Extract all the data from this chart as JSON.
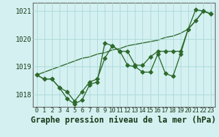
{
  "title": "Graphe pression niveau de la mer (hPa)",
  "hours": [
    0,
    1,
    2,
    3,
    4,
    5,
    6,
    7,
    8,
    9,
    10,
    11,
    12,
    13,
    14,
    15,
    16,
    17,
    18,
    19,
    20,
    21,
    22,
    23
  ],
  "series_zigzag": [
    1018.7,
    1018.55,
    1018.55,
    1018.25,
    1017.85,
    1017.65,
    1017.8,
    1018.35,
    1018.45,
    1019.85,
    1019.75,
    1019.55,
    1019.05,
    1019.0,
    1018.8,
    1018.8,
    1019.45,
    1018.75,
    1018.65,
    1019.45,
    1020.35,
    1021.05,
    1021.0,
    1020.9
  ],
  "series_smooth": [
    1018.7,
    1018.55,
    1018.55,
    1018.25,
    1018.1,
    1017.75,
    1018.1,
    1018.45,
    1018.55,
    1019.3,
    1019.75,
    1019.55,
    1019.55,
    1019.05,
    1019.05,
    1019.35,
    1019.55,
    1019.55,
    1019.55,
    1019.55,
    1020.35,
    1020.65,
    1021.0,
    1020.9
  ],
  "series_linear": [
    1018.7,
    1018.8,
    1018.9,
    1019.0,
    1019.1,
    1019.2,
    1019.3,
    1019.35,
    1019.45,
    1019.5,
    1019.6,
    1019.65,
    1019.75,
    1019.8,
    1019.85,
    1019.9,
    1019.95,
    1020.05,
    1020.1,
    1020.2,
    1020.35,
    1020.65,
    1021.0,
    1020.9
  ],
  "line_color": "#2d6a2d",
  "bg_color": "#d4f0f0",
  "grid_color": "#a8d8d8",
  "ylim_min": 1017.55,
  "ylim_max": 1021.3,
  "yticks": [
    1018,
    1019,
    1020,
    1021
  ],
  "ytick_labels": [
    "1018",
    "1019",
    "1020",
    "1021"
  ],
  "xtick_labels": [
    "0",
    "1",
    "2",
    "3",
    "4",
    "5",
    "6",
    "7",
    "8",
    "9",
    "10",
    "11",
    "12",
    "13",
    "14",
    "15",
    "16",
    "17",
    "18",
    "19",
    "20",
    "21",
    "22",
    "23"
  ],
  "title_fontsize": 8.5,
  "tick_fontsize": 7,
  "marker_size": 2.8,
  "line_width": 1.0
}
